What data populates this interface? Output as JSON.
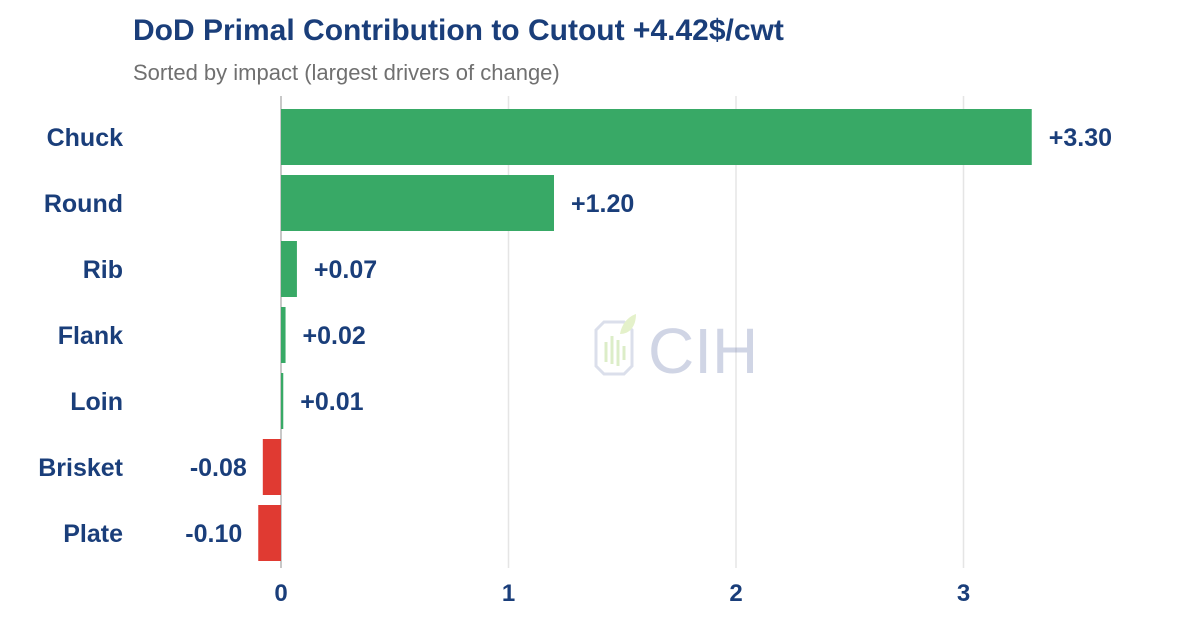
{
  "chart_data": {
    "type": "bar",
    "orientation": "horizontal",
    "title": "DoD Primal Contribution to Cutout +4.42$/cwt",
    "subtitle": "Sorted by impact (largest drivers of change)",
    "categories": [
      "Chuck",
      "Round",
      "Rib",
      "Flank",
      "Loin",
      "Brisket",
      "Plate"
    ],
    "values": [
      3.3,
      1.2,
      0.07,
      0.02,
      0.01,
      -0.08,
      -0.1
    ],
    "value_labels": [
      "+3.30",
      "+1.20",
      "+0.07",
      "+0.02",
      "+0.01",
      "-0.08",
      "-0.10"
    ],
    "xticks": [
      0,
      1,
      2,
      3
    ],
    "xlim": [
      -0.3,
      3.6
    ],
    "grid": "vertical",
    "legend": "none",
    "colors": {
      "positive": "#38a966",
      "negative": "#e03a32",
      "text": "#1a3e7a",
      "grid": "#e5e5e5",
      "zero_line": "#c8c8c8"
    }
  },
  "watermark": {
    "text": "CIH",
    "icon": "leaf-logo-icon"
  }
}
